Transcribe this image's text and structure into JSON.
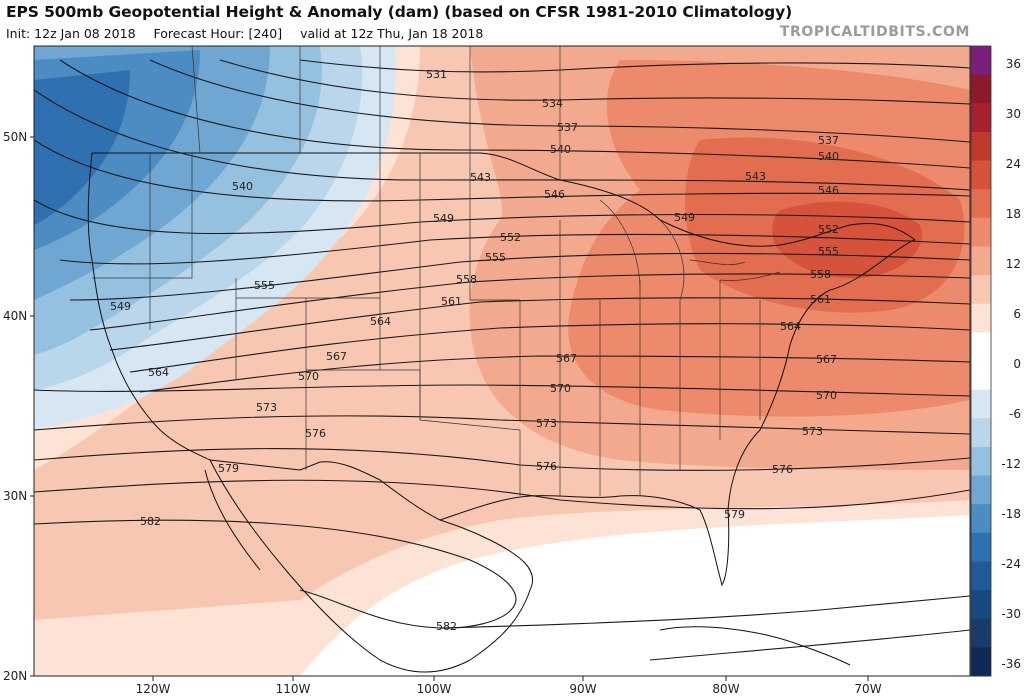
{
  "header": {
    "title": "EPS 500mb Geopotential Height & Anomaly (dam) (based on CFSR 1981-2010 Climatology)",
    "init": "Init: 12z Jan 08 2018",
    "forecast_hour": "Forecast Hour: [240]",
    "valid": "valid at 12z Thu, Jan 18 2018",
    "brand": "TROPICALTIDBITS.COM"
  },
  "axes": {
    "lat_labels": [
      "50N",
      "40N",
      "30N",
      "20N"
    ],
    "lon_labels": [
      "120W",
      "110W",
      "100W",
      "90W",
      "80W",
      "70W"
    ]
  },
  "colorbar": {
    "tick_labels": [
      "36",
      "30",
      "24",
      "18",
      "12",
      "6",
      "0",
      "-6",
      "-12",
      "-18",
      "-24",
      "-30",
      "-36"
    ],
    "colors_high_to_low": [
      "#7b1f7f",
      "#8b1a2b",
      "#a7202e",
      "#c0392b",
      "#d6523a",
      "#e36d4f",
      "#ed8a6b",
      "#f3a98d",
      "#f8c7b1",
      "#fce3d6",
      "#ffffff",
      "#ffffff",
      "#d6e7f3",
      "#b9d6ea",
      "#95c1e0",
      "#6fa7d2",
      "#4b8cc2",
      "#2f71b0",
      "#1f5a99",
      "#184982",
      "#1b3b6b",
      "#0f2a55"
    ]
  },
  "contour_labels": [
    "531",
    "534",
    "537",
    "537",
    "540",
    "540",
    "540",
    "543",
    "543",
    "546",
    "546",
    "549",
    "549",
    "549",
    "552",
    "552",
    "555",
    "555",
    "555",
    "558",
    "558",
    "561",
    "561",
    "564",
    "564",
    "564",
    "567",
    "567",
    "567",
    "570",
    "570",
    "570",
    "573",
    "573",
    "573",
    "576",
    "576",
    "576",
    "579",
    "579",
    "582",
    "582"
  ]
}
